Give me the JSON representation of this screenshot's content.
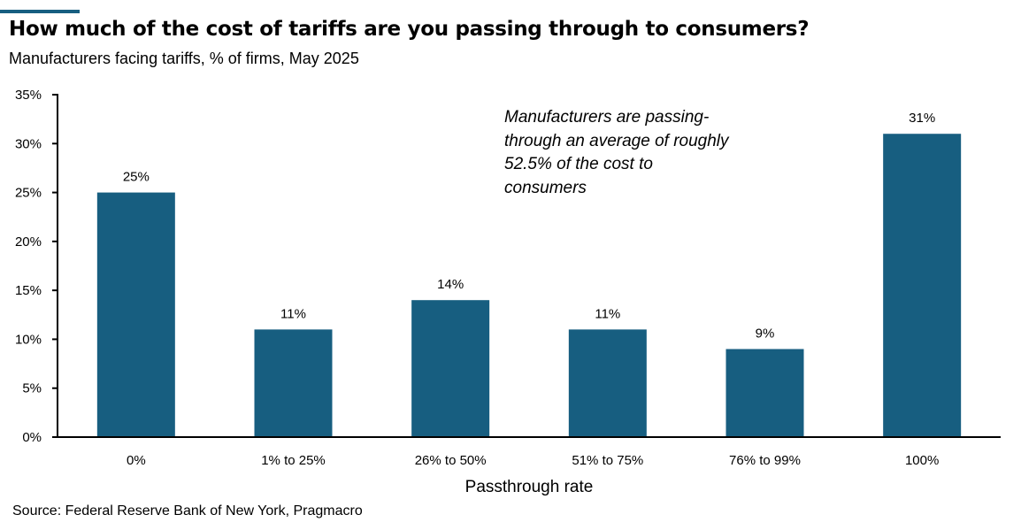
{
  "chart_data": {
    "type": "bar",
    "title": "How much of the cost of tariffs are you passing through to consumers?",
    "subtitle": "Manufacturers facing tariffs, % of firms, May 2025",
    "categories": [
      "0%",
      "1% to 25%",
      "26% to 50%",
      "51% to 75%",
      "76% to 99%",
      "100%"
    ],
    "values": [
      25,
      11,
      14,
      11,
      9,
      31
    ],
    "data_labels": [
      "25%",
      "11%",
      "14%",
      "11%",
      "9%",
      "31%"
    ],
    "xlabel": "Passthrough rate",
    "ylabel": "",
    "ylim": [
      0,
      35
    ],
    "yticks": [
      0,
      5,
      10,
      15,
      20,
      25,
      30,
      35
    ],
    "ytick_labels": [
      "0%",
      "5%",
      "10%",
      "15%",
      "20%",
      "25%",
      "30%",
      "35%"
    ],
    "grid": false,
    "bar_color": "#175e80",
    "annotation": "Manufacturers are passing-through an average of roughly 52.5% of the cost to consumers",
    "source": "Source: Federal Reserve Bank of New York, Pragmacro"
  }
}
